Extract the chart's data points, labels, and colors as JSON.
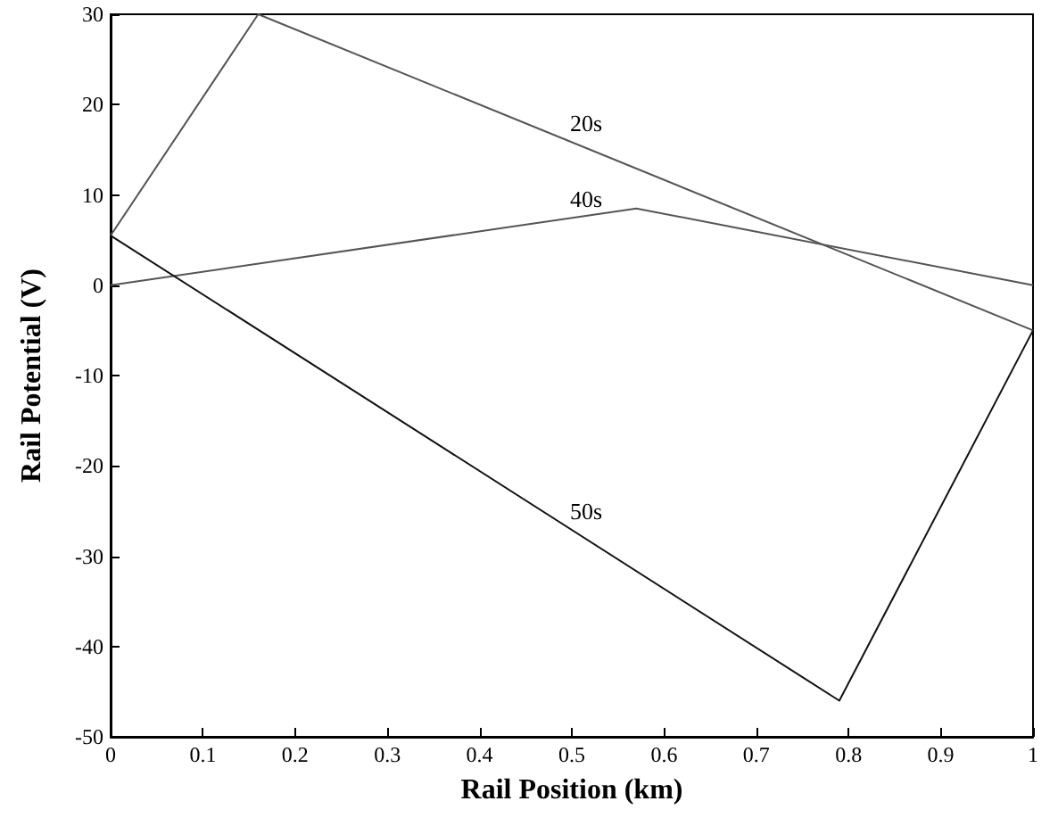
{
  "chart_data": {
    "type": "line",
    "xlabel": "Rail Position (km)",
    "ylabel": "Rail Potential (V)",
    "xlim": [
      0,
      1
    ],
    "xticks": [
      0,
      0.1,
      0.2,
      0.3,
      0.4,
      0.5,
      0.6,
      0.7,
      0.8,
      0.9,
      1
    ],
    "ylim": [
      -50,
      30
    ],
    "yticks": [
      -50,
      -40,
      -30,
      -20,
      -10,
      0,
      10,
      20,
      30
    ],
    "marker": "none",
    "line_style": "solid",
    "series": [
      {
        "name": "20s",
        "color": "#555555",
        "x": [
          0,
          0.16,
          1
        ],
        "values": [
          5.5,
          30,
          -5
        ]
      },
      {
        "name": "40s",
        "color": "#555555",
        "x": [
          0,
          0.57,
          1
        ],
        "values": [
          0,
          8.5,
          0
        ]
      },
      {
        "name": "50s",
        "color": "#111111",
        "x": [
          0,
          0.79,
          1
        ],
        "values": [
          5.5,
          -46,
          -5
        ]
      }
    ]
  }
}
